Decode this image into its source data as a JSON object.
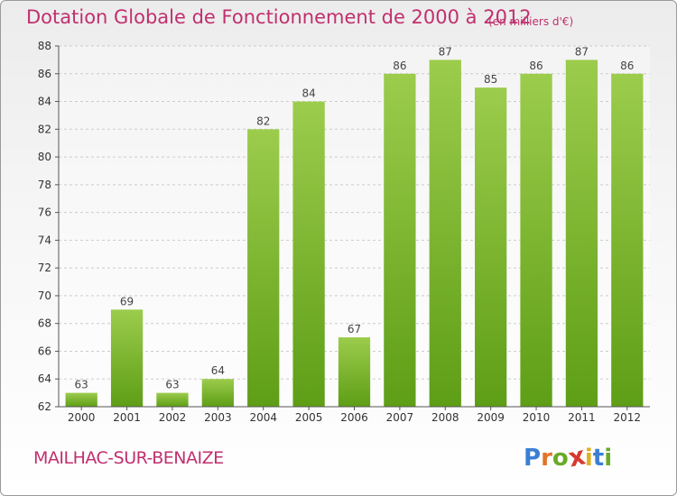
{
  "header": {
    "title": "Dotation Globale de Fonctionnement de 2000 à 2012",
    "subtitle": "(en milliers d'€)"
  },
  "footer": {
    "commune": "MAILHAC-SUR-BENAIZE",
    "logo_letters": [
      "P",
      "r",
      "o",
      "x",
      "i",
      "t",
      "i"
    ],
    "logo_colors": [
      "#3b7fd4",
      "#e0742a",
      "#6aaa2a",
      "#d63a2f",
      "#e0b020",
      "#3b7fd4",
      "#6aaa2a"
    ]
  },
  "chart_data": {
    "type": "bar",
    "categories": [
      "2000",
      "2001",
      "2002",
      "2003",
      "2004",
      "2005",
      "2006",
      "2007",
      "2008",
      "2009",
      "2010",
      "2011",
      "2012"
    ],
    "values": [
      63,
      69,
      63,
      64,
      82,
      84,
      67,
      86,
      87,
      85,
      86,
      87,
      86
    ],
    "data_labels": [
      "63",
      "69",
      "63",
      "64",
      "82",
      "84",
      "67",
      "86",
      "87",
      "85",
      "86",
      "87",
      "86"
    ],
    "ylim": [
      62,
      88
    ],
    "yticks": [
      62,
      64,
      66,
      68,
      70,
      72,
      74,
      76,
      78,
      80,
      82,
      84,
      86,
      88
    ],
    "grid": true,
    "bar_color_top": "#9ccc4c",
    "bar_color_bottom": "#5e9e16",
    "title_color": "#c0306e"
  }
}
